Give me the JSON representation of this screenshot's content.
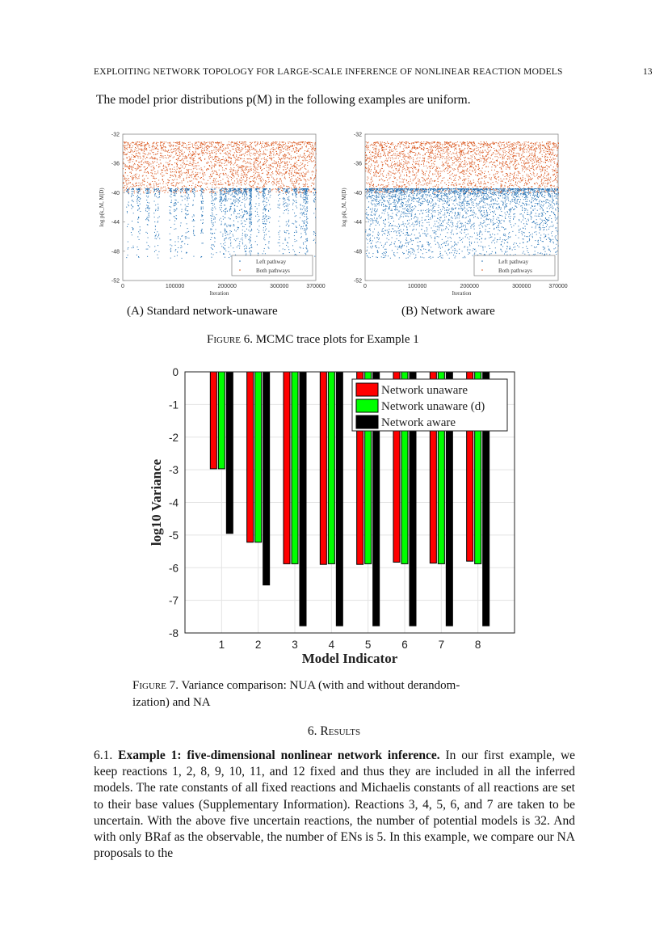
{
  "header": {
    "running_head": "EXPLOITING NETWORK TOPOLOGY FOR LARGE-SCALE INFERENCE OF NONLINEAR REACTION MODELS",
    "page_number": "13"
  },
  "intro": "The model prior distributions p(M) in the following examples are uniform.",
  "figure6": {
    "caption_label": "Figure 6.",
    "caption_text": "MCMC trace plots for Example 1",
    "subcaptions": [
      {
        "label": "(A)",
        "text": "Standard network-unaware"
      },
      {
        "label": "(B)",
        "text": "Network aware"
      }
    ]
  },
  "figure7": {
    "caption_label": "Figure 7.",
    "caption_line1": "Variance comparison: NUA (with and without derandom-",
    "caption_line2": "ization) and NA"
  },
  "section": {
    "heading": "6. Results"
  },
  "paragraph": {
    "number": "6.1.",
    "bold_title": "Example 1: five-dimensional nonlinear network inference.",
    "text": "In our first example, we keep reactions 1, 2, 8, 9, 10, 11, and 12 fixed and thus they are included in all the inferred models. The rate constants of all fixed reactions and Michaelis constants of all reactions are set to their base values (Supplementary Information). Reactions 3, 4, 5, 6, and 7 are taken to be uncertain. With the above five uncertain reactions, the number of potential models is 32. And with only BRaf as the observable, the number of ENs is 5. In this example, we compare our NA proposals to the"
  },
  "chart_data": [
    {
      "type": "scatter",
      "xlabel": "Iteration",
      "ylabel": "log p(k_M, M|D)",
      "xlim": [
        0,
        370000
      ],
      "ylim": [
        -52,
        -32
      ],
      "xticks": [
        "0",
        "100000",
        "200000",
        "300000",
        "370000"
      ],
      "yticks": [
        "-32",
        "-36",
        "-40",
        "-44",
        "-48",
        "-52"
      ],
      "legend": {
        "placement": "bottom-right",
        "entries": [
          "Left pathway",
          "Both pathways"
        ]
      },
      "series": [
        {
          "name": "Left pathway",
          "color": "#1f6fb4"
        },
        {
          "name": "Both pathways",
          "color": "#d95319"
        }
      ],
      "grid": false
    },
    {
      "type": "scatter",
      "xlabel": "Iteration",
      "ylabel": "log p(k_M, M|D)",
      "xlim": [
        0,
        370000
      ],
      "ylim": [
        -52,
        -32
      ],
      "xticks": [
        "0",
        "100000",
        "200000",
        "300000",
        "370000"
      ],
      "yticks": [
        "-32",
        "-36",
        "-40",
        "-44",
        "-48",
        "-52"
      ],
      "legend": {
        "placement": "bottom-right",
        "entries": [
          "Left pathway",
          "Both pathways"
        ]
      },
      "series": [
        {
          "name": "Left pathway",
          "color": "#1f6fb4"
        },
        {
          "name": "Both pathways",
          "color": "#d95319"
        }
      ],
      "grid": false
    },
    {
      "type": "bar",
      "xlabel": "Model Indicator",
      "ylabel": "log10 Variance",
      "categories": [
        "1",
        "2",
        "3",
        "4",
        "5",
        "6",
        "7",
        "8"
      ],
      "ylim": [
        -8,
        0
      ],
      "xlim": [
        0,
        9
      ],
      "yticks": [
        "0",
        "-1",
        "-2",
        "-3",
        "-4",
        "-5",
        "-6",
        "-7",
        "-8"
      ],
      "grid": true,
      "legend": {
        "placement": "top-right"
      },
      "series": [
        {
          "name": "Network unaware",
          "color": "#ff0000",
          "values": [
            -2.97,
            -5.22,
            -5.88,
            -5.9,
            -5.9,
            -5.83,
            -5.86,
            -5.8
          ]
        },
        {
          "name": "Network unaware (d)",
          "color": "#00ff00",
          "values": [
            -2.97,
            -5.22,
            -5.88,
            -5.88,
            -5.88,
            -5.88,
            -5.88,
            -5.88
          ]
        },
        {
          "name": "Network aware",
          "color": "#000000",
          "values": [
            -4.95,
            -6.53,
            -7.78,
            -7.78,
            -7.78,
            -7.78,
            -7.78,
            -7.78
          ]
        }
      ]
    }
  ]
}
